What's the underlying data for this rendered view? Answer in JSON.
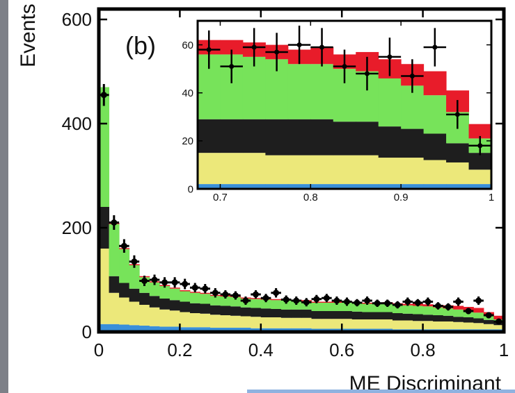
{
  "colors": {
    "blue": "#3a8fd9",
    "yellow": "#ece87a",
    "black": "#1e1e1e",
    "green": "#77e35a",
    "red": "#e81c2a",
    "marker": "#000000"
  },
  "chart_data": [
    {
      "type": "area",
      "panel_label": "(b)",
      "xlabel": "ME Discriminant",
      "ylabel": "Events",
      "xlim": [
        0,
        1
      ],
      "ylim": [
        0,
        620
      ],
      "xticks": [
        "0",
        "0.2",
        "0.4",
        "0.6",
        "0.8",
        "1"
      ],
      "yticks": [
        "0",
        "200",
        "400",
        "600"
      ],
      "bin_width": 0.025,
      "stack_order": [
        "blue",
        "yellow",
        "black",
        "green",
        "red"
      ],
      "series": [
        {
          "color": "blue",
          "values": [
            15,
            15,
            14,
            13,
            12,
            11,
            10,
            10,
            9,
            9,
            9,
            8,
            8,
            8,
            8,
            7,
            7,
            7,
            7,
            7,
            7,
            6,
            6,
            6,
            6,
            6,
            6,
            6,
            6,
            5,
            5,
            5,
            5,
            5,
            5,
            5,
            5,
            5,
            5,
            5
          ]
        },
        {
          "color": "yellow",
          "values": [
            145,
            60,
            52,
            45,
            40,
            36,
            33,
            31,
            29,
            27,
            26,
            25,
            24,
            23,
            22,
            22,
            21,
            21,
            20,
            20,
            20,
            19,
            19,
            19,
            19,
            18,
            18,
            18,
            18,
            17,
            17,
            16,
            16,
            15,
            15,
            14,
            13,
            12,
            10,
            8
          ]
        },
        {
          "color": "black",
          "values": [
            80,
            32,
            28,
            25,
            23,
            22,
            21,
            20,
            20,
            19,
            19,
            18,
            18,
            18,
            17,
            17,
            17,
            16,
            16,
            16,
            16,
            15,
            15,
            15,
            15,
            15,
            14,
            14,
            14,
            14,
            13,
            13,
            12,
            12,
            11,
            10,
            10,
            9,
            8,
            6
          ]
        },
        {
          "color": "green",
          "values": [
            230,
            100,
            65,
            45,
            30,
            26,
            24,
            22,
            20,
            20,
            19,
            18,
            18,
            18,
            17,
            17,
            17,
            17,
            17,
            17,
            16,
            16,
            16,
            16,
            16,
            16,
            16,
            16,
            16,
            16,
            16,
            16,
            16,
            15,
            14,
            14,
            12,
            11,
            7,
            5
          ]
        },
        {
          "color": "red",
          "values": [
            0,
            2,
            2,
            2,
            2,
            2,
            2,
            2,
            2,
            2,
            2,
            2,
            2,
            2,
            2,
            2,
            2,
            2,
            2,
            2,
            2,
            2,
            2,
            2,
            2,
            2,
            2,
            2,
            3,
            3,
            3,
            4,
            4,
            5,
            6,
            7,
            8,
            9,
            8,
            7
          ]
        }
      ],
      "points": {
        "x": [
          0.0125,
          0.0375,
          0.0625,
          0.0875,
          0.1125,
          0.1375,
          0.1625,
          0.1875,
          0.2125,
          0.2375,
          0.2625,
          0.2875,
          0.3125,
          0.3375,
          0.3625,
          0.3875,
          0.4125,
          0.4375,
          0.4625,
          0.4875,
          0.5125,
          0.5375,
          0.5625,
          0.5875,
          0.6125,
          0.6375,
          0.6625,
          0.6875,
          0.7125,
          0.7375,
          0.7625,
          0.7875,
          0.8125,
          0.8375,
          0.8625,
          0.8875,
          0.9125,
          0.9375,
          0.9625,
          0.9875
        ],
        "y": [
          455,
          210,
          165,
          135,
          98,
          100,
          95,
          95,
          92,
          85,
          83,
          75,
          72,
          70,
          60,
          72,
          65,
          75,
          62,
          60,
          57,
          63,
          65,
          60,
          58,
          56,
          60,
          55,
          55,
          52,
          58,
          56,
          58,
          50,
          48,
          58,
          40,
          60,
          32,
          20
        ],
        "yerr": [
          21,
          14,
          13,
          12,
          10,
          10,
          10,
          10,
          10,
          9,
          9,
          9,
          8,
          8,
          8,
          8,
          8,
          9,
          8,
          8,
          8,
          8,
          8,
          8,
          8,
          7,
          8,
          7,
          7,
          7,
          8,
          7,
          8,
          7,
          7,
          8,
          6,
          8,
          6,
          4
        ]
      }
    },
    {
      "type": "area",
      "inset": true,
      "xlim": [
        0.675,
        1.0
      ],
      "ylim": [
        0,
        70
      ],
      "xticks": [
        "0.7",
        "0.8",
        "0.9",
        "1"
      ],
      "yticks": [
        "0",
        "20",
        "40",
        "60"
      ],
      "bin_width": 0.025,
      "series": [
        {
          "color": "blue",
          "values": [
            2,
            2,
            2,
            2,
            2,
            2,
            2,
            2,
            2,
            2,
            2,
            2,
            2
          ]
        },
        {
          "color": "yellow",
          "values": [
            13,
            13,
            13,
            12,
            12,
            12,
            12,
            12,
            11,
            11,
            10,
            9,
            6
          ]
        },
        {
          "color": "black",
          "values": [
            14,
            14,
            14,
            15,
            15,
            15,
            14,
            14,
            13,
            12,
            11,
            8,
            7
          ]
        },
        {
          "color": "green",
          "values": [
            27,
            27,
            26,
            25,
            23,
            23,
            22,
            21,
            20,
            18,
            16,
            13,
            6
          ]
        },
        {
          "color": "red",
          "values": [
            6,
            6,
            6,
            6,
            6,
            7,
            6,
            8,
            8,
            9,
            10,
            9,
            6
          ]
        }
      ],
      "points": {
        "x": [
          0.6875,
          0.7125,
          0.7375,
          0.7625,
          0.7875,
          0.8125,
          0.8375,
          0.8625,
          0.8875,
          0.9125,
          0.9375,
          0.9625,
          0.9875
        ],
        "y": [
          58,
          51,
          59,
          57,
          60,
          59,
          51,
          48,
          55,
          47,
          59,
          31,
          18
        ],
        "yerr": [
          8,
          7,
          8,
          8,
          8,
          8,
          7,
          7,
          8,
          7,
          8,
          6,
          4
        ]
      }
    }
  ]
}
